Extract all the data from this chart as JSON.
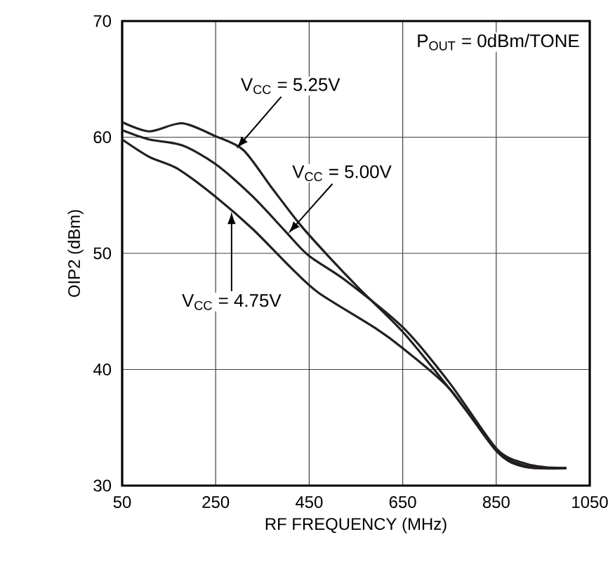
{
  "chart_data": {
    "type": "line",
    "xlabel": "RF FREQUENCY (MHz)",
    "ylabel": "OIP2 (dBm)",
    "xlim": [
      50,
      1050
    ],
    "xticks": [
      50,
      250,
      450,
      650,
      850,
      1050
    ],
    "ylim": [
      30,
      70
    ],
    "yticks": [
      30,
      40,
      50,
      60,
      70
    ],
    "grid": true,
    "marker": "none",
    "line_style": "solid",
    "series": [
      {
        "color": "#231f20",
        "x": [
          50,
          108,
          178,
          249,
          309,
          369,
          430,
          490,
          561,
          651,
          751,
          852,
          912,
          952,
          1000
        ],
        "values": [
          61.3,
          60.5,
          61.2,
          60.1,
          58.9,
          55.7,
          52.5,
          49.8,
          46.8,
          43.2,
          38.3,
          33.1,
          31.9,
          31.6,
          31.5
        ]
      },
      {
        "color": "#231f20",
        "x": [
          50,
          108,
          178,
          249,
          329,
          399,
          449,
          530,
          651,
          751,
          852,
          912,
          1000
        ],
        "values": [
          60.6,
          59.8,
          59.3,
          57.7,
          54.9,
          51.9,
          49.8,
          47.6,
          43.6,
          38.8,
          33.1,
          31.7,
          31.5
        ]
      },
      {
        "color": "#231f20",
        "x": [
          50,
          108,
          168,
          249,
          329,
          410,
          470,
          590,
          651,
          751,
          852,
          912,
          1000
        ],
        "values": [
          59.8,
          58.3,
          57.3,
          54.9,
          52.1,
          48.8,
          46.6,
          43.6,
          41.8,
          38.3,
          32.9,
          31.6,
          31.5
        ]
      }
    ],
    "annotations": [
      "P$_{OUT}$ = 0dBm/TONE",
      {
        "text": "V$_{CC}$ = 5.25V",
        "x": 294,
        "y": 59
      },
      {
        "text": "V$_{CC}$ = 5.00V",
        "x": 405,
        "y": 51.7
      },
      {
        "text": "V$_{CC}$ = 4.75V",
        "x": 284,
        "y": 53.6
      }
    ]
  }
}
